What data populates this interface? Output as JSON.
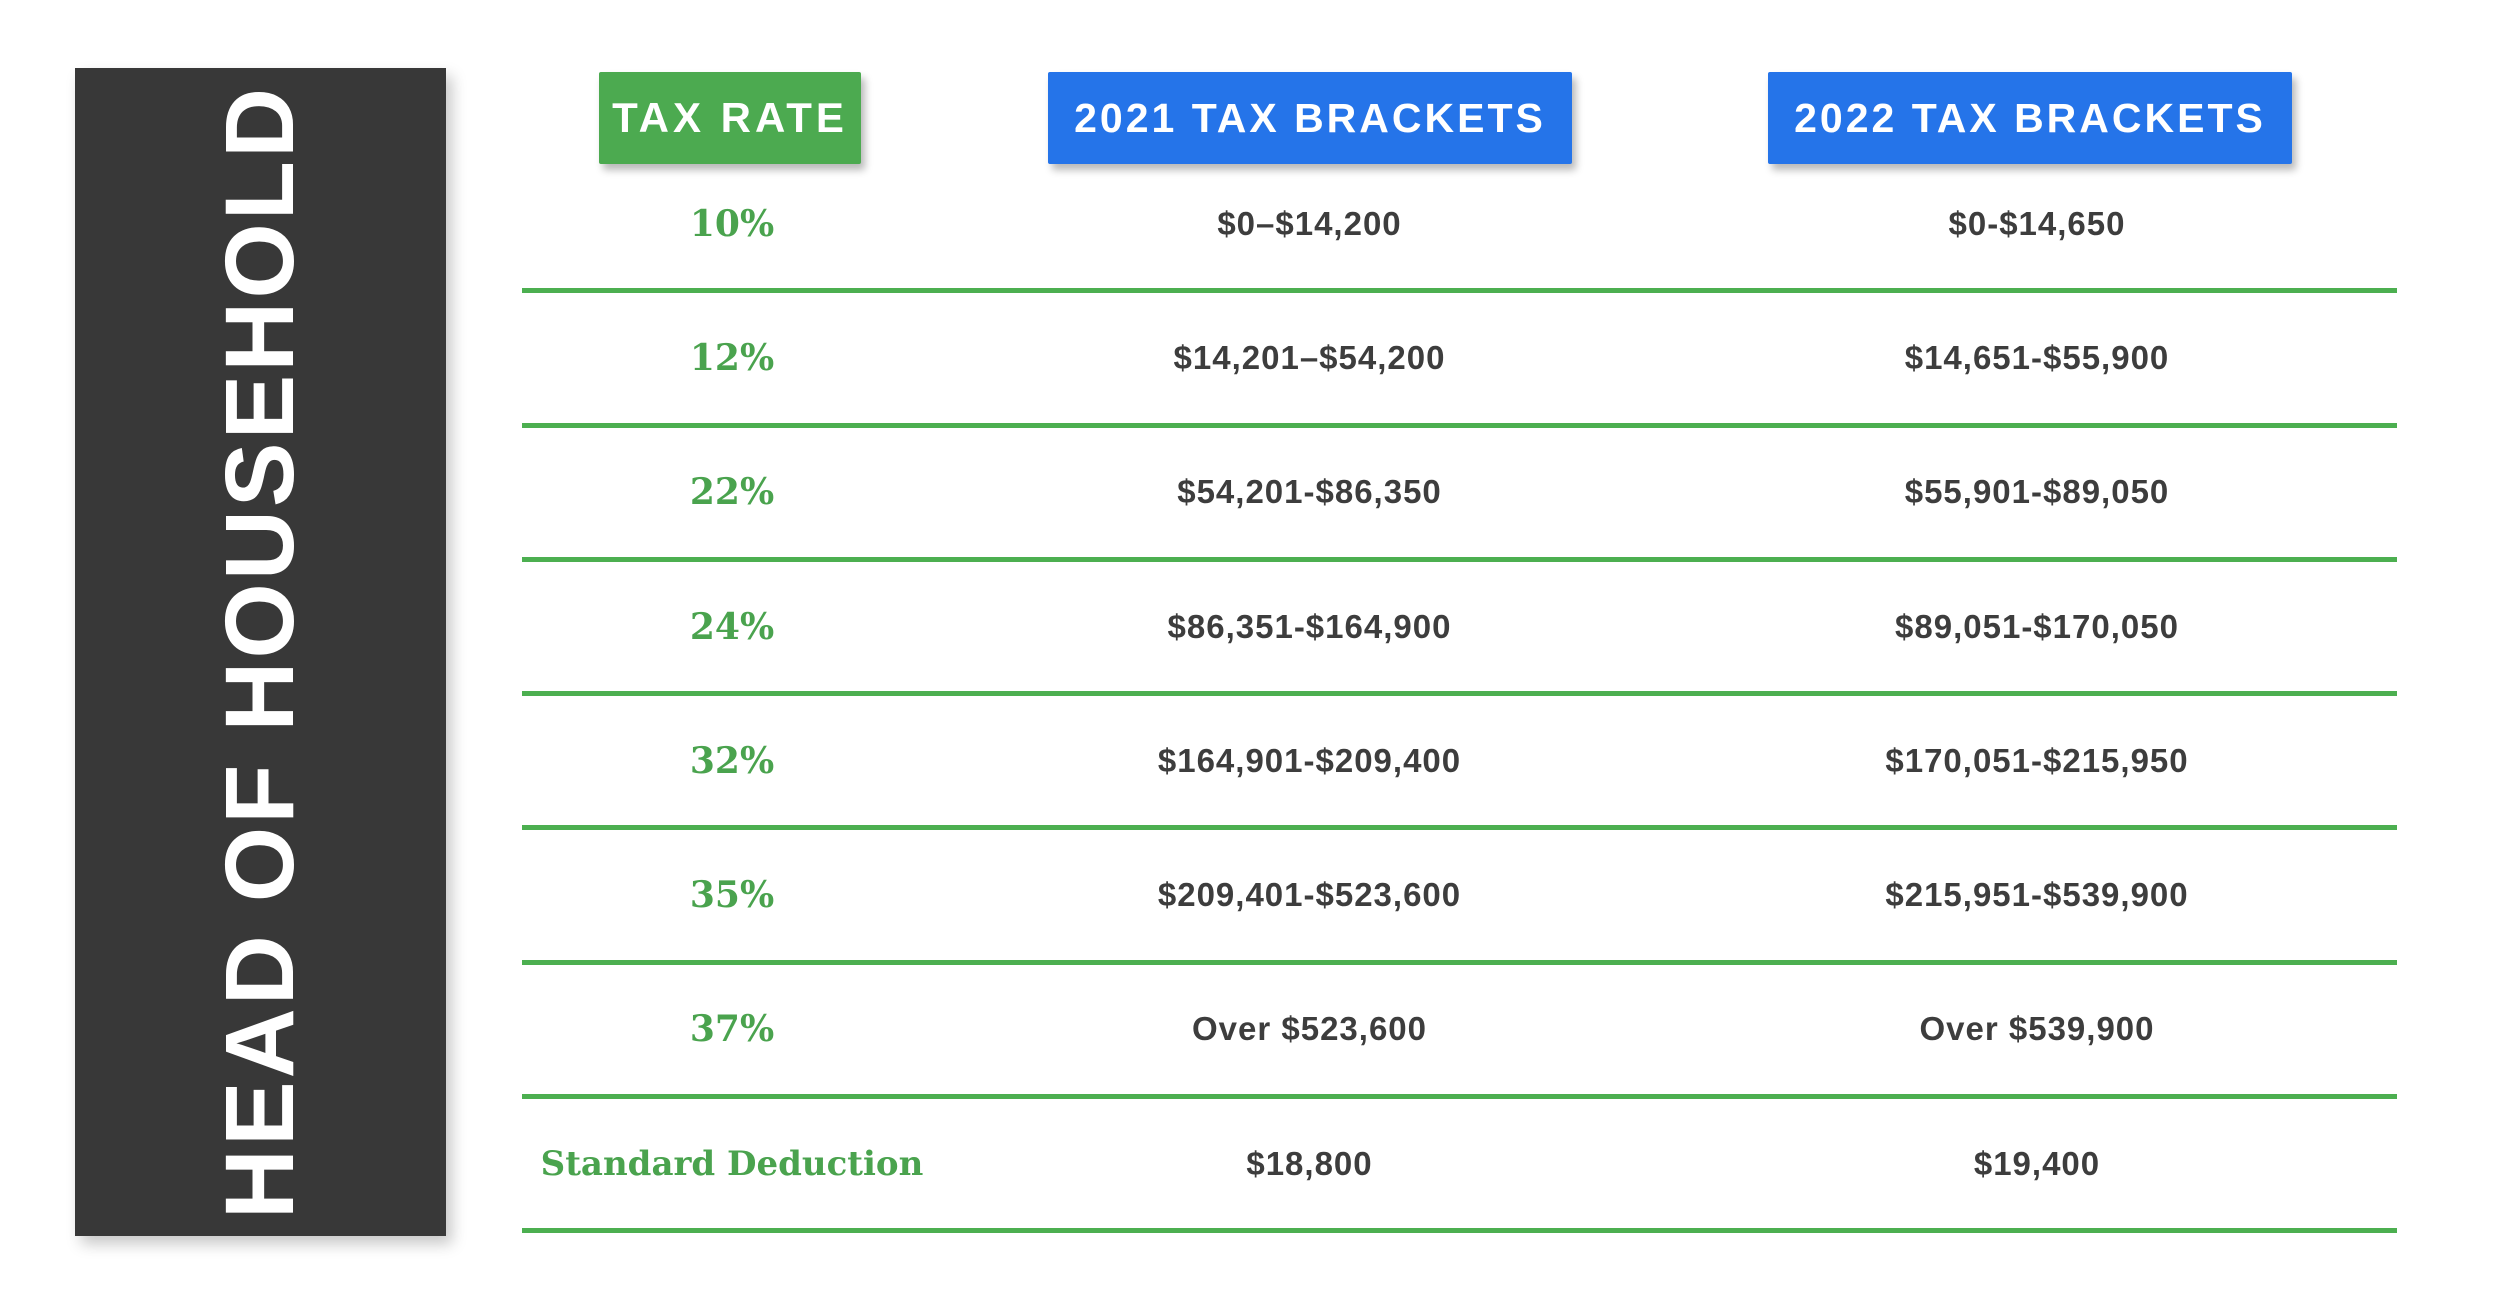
{
  "banner": {
    "title_vertical": "HEAD OF HOUSEHOLD"
  },
  "header": {
    "rate_label": "TAX RATE",
    "col_2021": "2021 TAX BRACKETS",
    "col_2022": "2022 TAX BRACKETS"
  },
  "table": {
    "rows": [
      {
        "rate": "10%",
        "y2021": "$0–$14,200",
        "y2022": "$0-$14,650"
      },
      {
        "rate": "12%",
        "y2021": "$14,201–$54,200",
        "y2022": "$14,651-$55,900"
      },
      {
        "rate": "22%",
        "y2021": "$54,201-$86,350",
        "y2022": "$55,901-$89,050"
      },
      {
        "rate": "24%",
        "y2021": "$86,351-$164,900",
        "y2022": "$89,051-$170,050"
      },
      {
        "rate": "32%",
        "y2021": "$164,901-$209,400",
        "y2022": "$170,051-$215,950"
      },
      {
        "rate": "35%",
        "y2021": "$209,401-$523,600",
        "y2022": "$215,951-$539,900"
      },
      {
        "rate": "37%",
        "y2021": "Over $523,600",
        "y2022": "Over $539,900"
      },
      {
        "rate": "Standard Deduction",
        "y2021": "$18,800",
        "y2022": "$19,400"
      }
    ]
  },
  "colors": {
    "green_chip": "#4caa50",
    "green_line": "#4caf50",
    "green_text": "#4aa34e",
    "blue_chip": "#2574e9",
    "banner_bg": "#383838",
    "value_text": "#3d3d3d",
    "background": "#ffffff"
  },
  "chart_data": {
    "type": "table",
    "title": "HEAD OF HOUSEHOLD",
    "columns": [
      "TAX RATE",
      "2021 TAX BRACKETS",
      "2022 TAX BRACKETS"
    ],
    "rows": [
      [
        "10%",
        "$0–$14,200",
        "$0-$14,650"
      ],
      [
        "12%",
        "$14,201–$54,200",
        "$14,651-$55,900"
      ],
      [
        "22%",
        "$54,201-$86,350",
        "$55,901-$89,050"
      ],
      [
        "24%",
        "$86,351-$164,900",
        "$89,051-$170,050"
      ],
      [
        "32%",
        "$164,901-$209,400",
        "$170,051-$215,950"
      ],
      [
        "35%",
        "$209,401-$523,600",
        "$215,951-$539,900"
      ],
      [
        "37%",
        "Over $523,600",
        "Over $539,900"
      ],
      [
        "Standard Deduction",
        "$18,800",
        "$19,400"
      ]
    ],
    "standard_deduction": {
      "2021": 18800,
      "2022": 19400
    }
  }
}
